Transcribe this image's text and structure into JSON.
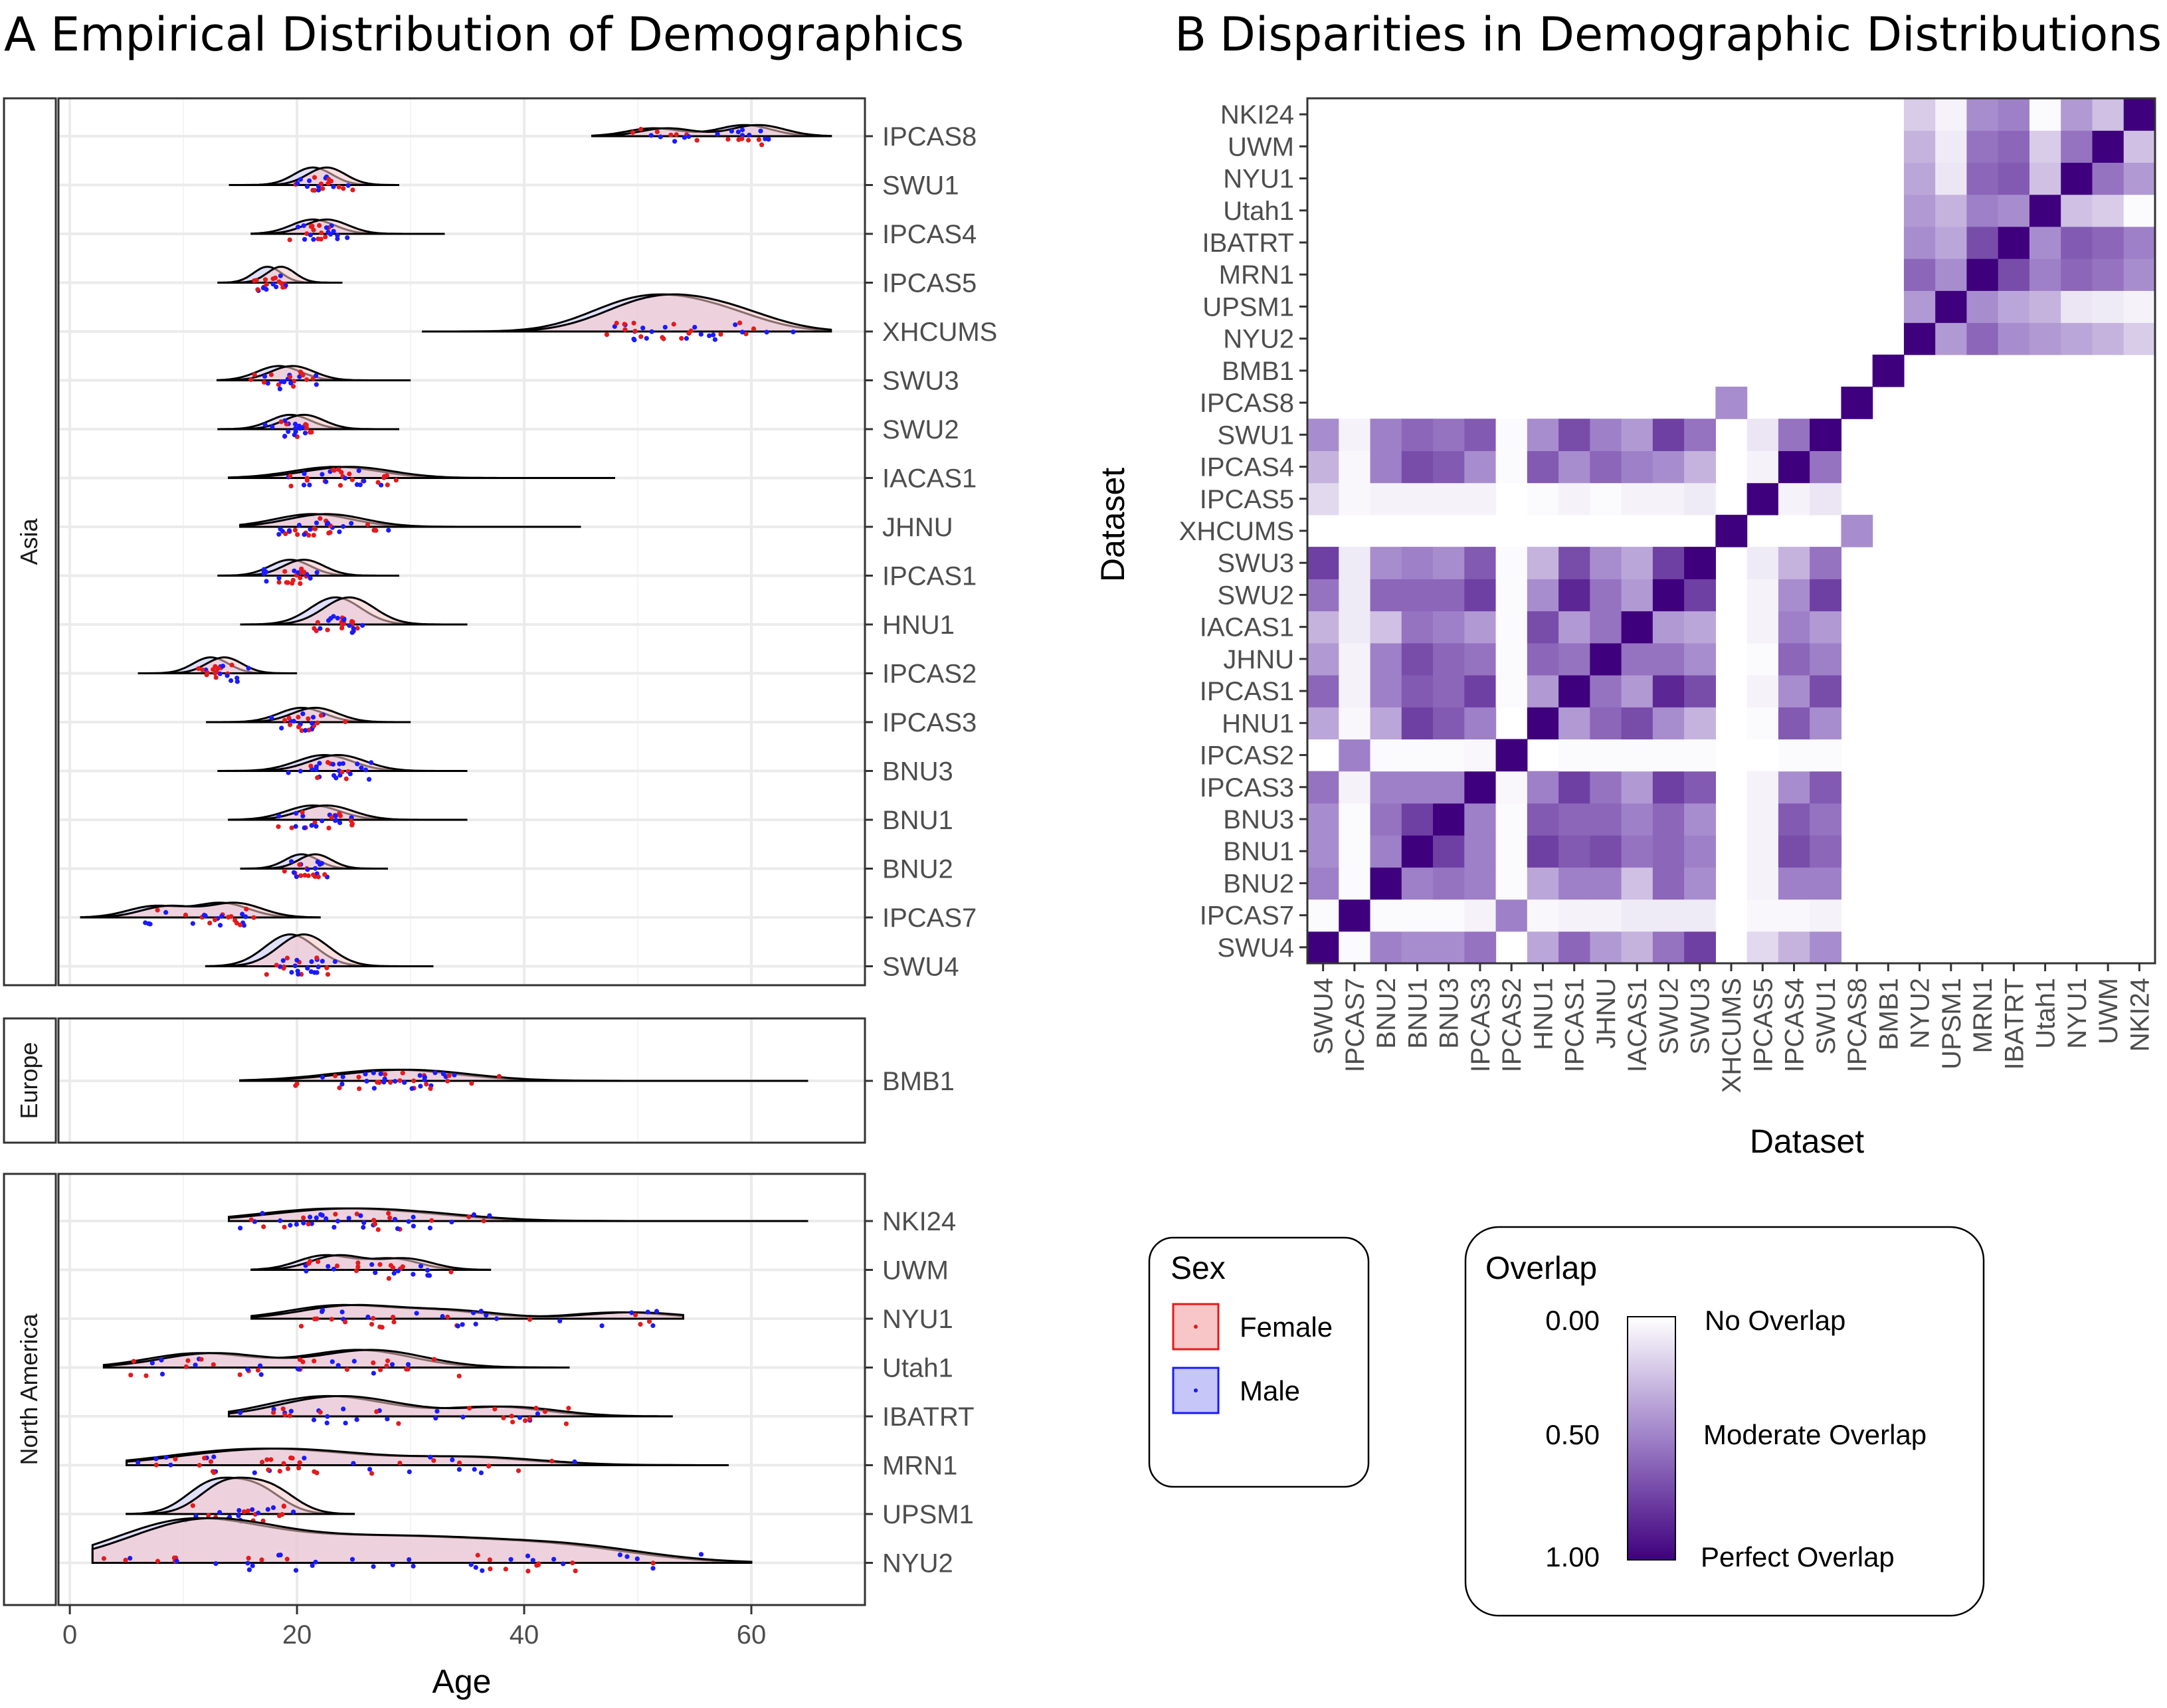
{
  "panel_a": {
    "letter": "A",
    "title": "Empirical Distribution of Demographics",
    "xlabel": "Age",
    "x_ticks": [
      "0",
      "20",
      "40",
      "60"
    ],
    "facets": [
      {
        "name": "Asia",
        "datasets": [
          "IPCAS8",
          "SWU1",
          "IPCAS4",
          "IPCAS5",
          "XHCUMS",
          "SWU3",
          "SWU2",
          "IACAS1",
          "JHNU",
          "IPCAS1",
          "HNU1",
          "IPCAS2",
          "IPCAS3",
          "BNU3",
          "BNU1",
          "BNU2",
          "IPCAS7",
          "SWU4"
        ]
      },
      {
        "name": "Europe",
        "datasets": [
          "BMB1"
        ]
      },
      {
        "name": "North America",
        "datasets": [
          "NKI24",
          "UWM",
          "NYU1",
          "Utah1",
          "IBATRT",
          "MRN1",
          "UPSM1",
          "NYU2"
        ]
      }
    ]
  },
  "panel_b": {
    "letter": "B",
    "title": "Disparities in Demographic Distributions",
    "xlabel": "Dataset",
    "ylabel": "Dataset",
    "order": [
      "SWU4",
      "IPCAS7",
      "BNU2",
      "BNU1",
      "BNU3",
      "IPCAS3",
      "IPCAS2",
      "HNU1",
      "IPCAS1",
      "JHNU",
      "IACAS1",
      "SWU2",
      "SWU3",
      "XHCUMS",
      "IPCAS5",
      "IPCAS4",
      "SWU1",
      "IPCAS8",
      "BMB1",
      "NYU2",
      "UPSM1",
      "MRN1",
      "IBATRT",
      "Utah1",
      "NYU1",
      "UWM",
      "NKI24"
    ]
  },
  "legend_sex": {
    "title": "Sex",
    "items": [
      {
        "label": "Female",
        "color": "#e41a1c",
        "fill": "#f8c6c6"
      },
      {
        "label": "Male",
        "color": "#1a1aff",
        "fill": "#c6c6f8"
      }
    ]
  },
  "legend_overlap": {
    "title": "Overlap",
    "ticks": [
      "0.00",
      "0.50",
      "1.00"
    ],
    "labels": [
      "No Overlap",
      "Moderate Overlap",
      "Perfect Overlap"
    ],
    "colors": [
      "#ffffff",
      "#9e80c8",
      "#3f007d"
    ]
  },
  "chart_data": [
    {
      "type": "ridgeline",
      "title": "Empirical Distribution of Demographics",
      "xlabel": "Age",
      "xlim": [
        -1,
        70
      ],
      "x_ticks": [
        0,
        20,
        40,
        60
      ],
      "grid": true,
      "series_names": [
        "Female",
        "Male"
      ],
      "ranges": {
        "IPCAS8": [
          46,
          67
        ],
        "SWU1": [
          14,
          29
        ],
        "IPCAS4": [
          16,
          33
        ],
        "IPCAS5": [
          13,
          24
        ],
        "XHCUMS": [
          31,
          67
        ],
        "SWU3": [
          13,
          30
        ],
        "SWU2": [
          13,
          29
        ],
        "IACAS1": [
          14,
          48
        ],
        "JHNU": [
          15,
          45
        ],
        "IPCAS1": [
          13,
          29
        ],
        "HNU1": [
          15,
          35
        ],
        "IPCAS2": [
          6,
          20
        ],
        "IPCAS3": [
          12,
          30
        ],
        "BNU3": [
          13,
          35
        ],
        "BNU1": [
          14,
          35
        ],
        "BNU2": [
          15,
          28
        ],
        "IPCAS7": [
          1,
          22
        ],
        "SWU4": [
          12,
          32
        ],
        "BMB1": [
          15,
          65
        ],
        "NKI24": [
          14,
          65
        ],
        "UWM": [
          16,
          37
        ],
        "NYU1": [
          16,
          54
        ],
        "Utah1": [
          3,
          44
        ],
        "IBATRT": [
          14,
          53
        ],
        "MRN1": [
          5,
          58
        ],
        "UPSM1": [
          5,
          25
        ],
        "NYU2": [
          2,
          60
        ]
      },
      "modes": {
        "IPCAS8": [
          [
            52,
            0.25
          ],
          [
            60,
            0.35
          ]
        ],
        "SWU1": [
          [
            22,
            0.55
          ]
        ],
        "IPCAS4": [
          [
            22,
            0.45
          ]
        ],
        "IPCAS5": [
          [
            18,
            0.5
          ]
        ],
        "XHCUMS": [
          [
            49,
            0.55
          ],
          [
            53,
            0.6
          ],
          [
            58,
            0.5
          ]
        ],
        "SWU3": [
          [
            19,
            0.45
          ]
        ],
        "SWU2": [
          [
            20,
            0.45
          ]
        ],
        "IACAS1": [
          [
            24,
            0.35
          ]
        ],
        "JHNU": [
          [
            22,
            0.4
          ]
        ],
        "IPCAS1": [
          [
            20,
            0.5
          ]
        ],
        "HNU1": [
          [
            24,
            0.85
          ]
        ],
        "IPCAS2": [
          [
            13,
            0.5
          ]
        ],
        "IPCAS3": [
          [
            21,
            0.45
          ]
        ],
        "BNU3": [
          [
            23,
            0.5
          ]
        ],
        "BNU1": [
          [
            22,
            0.45
          ]
        ],
        "BNU2": [
          [
            21,
            0.45
          ]
        ],
        "IPCAS7": [
          [
            8,
            0.35
          ],
          [
            14,
            0.45
          ]
        ],
        "SWU4": [
          [
            20,
            1.0
          ]
        ],
        "BMB1": [
          [
            29,
            0.35
          ]
        ],
        "NKI24": [
          [
            22,
            0.3
          ],
          [
            30,
            0.2
          ]
        ],
        "UWM": [
          [
            23,
            0.45
          ],
          [
            29,
            0.35
          ]
        ],
        "NYU1": [
          [
            24,
            0.4
          ],
          [
            33,
            0.25
          ],
          [
            49,
            0.2
          ]
        ],
        "Utah1": [
          [
            12,
            0.45
          ],
          [
            26,
            0.55
          ]
        ],
        "IBATRT": [
          [
            21,
            0.4
          ],
          [
            26,
            0.35
          ],
          [
            38,
            0.3
          ]
        ],
        "MRN1": [
          [
            13,
            0.3
          ],
          [
            21,
            0.35
          ],
          [
            35,
            0.25
          ]
        ],
        "UPSM1": [
          [
            13,
            0.9
          ],
          [
            17,
            0.8
          ]
        ],
        "NYU2": [
          [
            11,
            1.3
          ],
          [
            23,
            0.5
          ],
          [
            32,
            0.5
          ],
          [
            41,
            0.3
          ],
          [
            46,
            0.25
          ]
        ]
      }
    },
    {
      "type": "heatmap",
      "title": "Disparities in Demographic Distributions",
      "xlabel": "Dataset",
      "ylabel": "Dataset",
      "value_range": [
        0,
        1
      ],
      "categories": [
        "SWU4",
        "IPCAS7",
        "BNU2",
        "BNU1",
        "BNU3",
        "IPCAS3",
        "IPCAS2",
        "HNU1",
        "IPCAS1",
        "JHNU",
        "IACAS1",
        "SWU2",
        "SWU3",
        "XHCUMS",
        "IPCAS5",
        "IPCAS4",
        "SWU1",
        "IPCAS8",
        "BMB1",
        "NYU2",
        "UPSM1",
        "MRN1",
        "IBATRT",
        "Utah1",
        "NYU1",
        "UWM",
        "NKI24"
      ],
      "values": [
        [
          1.0,
          0.02,
          0.5,
          0.45,
          0.45,
          0.55,
          0.0,
          0.35,
          0.6,
          0.4,
          0.3,
          0.55,
          0.75,
          0.0,
          0.15,
          0.3,
          0.45,
          0.0,
          0,
          0,
          0,
          0,
          0,
          0,
          0,
          0,
          0
        ],
        [
          0.02,
          1.0,
          0.02,
          0.02,
          0.02,
          0.05,
          0.5,
          0.03,
          0.05,
          0.05,
          0.08,
          0.08,
          0.08,
          0.0,
          0.03,
          0.03,
          0.05,
          0.0,
          0,
          0,
          0,
          0,
          0,
          0,
          0,
          0,
          0
        ],
        [
          0.5,
          0.02,
          1.0,
          0.5,
          0.55,
          0.5,
          0.02,
          0.35,
          0.5,
          0.5,
          0.25,
          0.6,
          0.45,
          0.0,
          0.05,
          0.5,
          0.5,
          0.0,
          0,
          0,
          0,
          0,
          0,
          0,
          0,
          0,
          0
        ],
        [
          0.45,
          0.02,
          0.5,
          1.0,
          0.75,
          0.5,
          0.02,
          0.75,
          0.65,
          0.7,
          0.55,
          0.6,
          0.5,
          0.0,
          0.05,
          0.7,
          0.6,
          0.0,
          0,
          0,
          0,
          0,
          0,
          0,
          0,
          0,
          0
        ],
        [
          0.45,
          0.02,
          0.55,
          0.75,
          1.0,
          0.5,
          0.02,
          0.65,
          0.6,
          0.6,
          0.5,
          0.6,
          0.45,
          0.0,
          0.05,
          0.65,
          0.55,
          0.0,
          0,
          0,
          0,
          0,
          0,
          0,
          0,
          0,
          0
        ],
        [
          0.55,
          0.05,
          0.5,
          0.5,
          0.5,
          1.0,
          0.03,
          0.5,
          0.75,
          0.55,
          0.4,
          0.75,
          0.65,
          0.0,
          0.05,
          0.45,
          0.65,
          0.0,
          0,
          0,
          0,
          0,
          0,
          0,
          0,
          0,
          0
        ],
        [
          0.0,
          0.5,
          0.02,
          0.02,
          0.02,
          0.03,
          1.0,
          0.0,
          0.02,
          0.02,
          0.02,
          0.02,
          0.02,
          0.0,
          0.0,
          0.02,
          0.02,
          0.0,
          0,
          0,
          0,
          0,
          0,
          0,
          0,
          0,
          0
        ],
        [
          0.35,
          0.03,
          0.35,
          0.75,
          0.65,
          0.5,
          0.0,
          1.0,
          0.4,
          0.6,
          0.7,
          0.45,
          0.3,
          0.0,
          0.02,
          0.65,
          0.45,
          0.0,
          0,
          0,
          0,
          0,
          0,
          0,
          0,
          0,
          0
        ],
        [
          0.6,
          0.05,
          0.5,
          0.65,
          0.6,
          0.75,
          0.02,
          0.4,
          1.0,
          0.55,
          0.4,
          0.85,
          0.7,
          0.0,
          0.05,
          0.45,
          0.7,
          0.0,
          0,
          0,
          0,
          0,
          0,
          0,
          0,
          0,
          0
        ],
        [
          0.4,
          0.05,
          0.5,
          0.7,
          0.6,
          0.55,
          0.02,
          0.6,
          0.55,
          1.0,
          0.55,
          0.55,
          0.45,
          0.0,
          0.02,
          0.6,
          0.5,
          0.0,
          0,
          0,
          0,
          0,
          0,
          0,
          0,
          0,
          0
        ],
        [
          0.3,
          0.08,
          0.25,
          0.55,
          0.5,
          0.4,
          0.02,
          0.7,
          0.4,
          0.55,
          1.0,
          0.4,
          0.35,
          0.0,
          0.05,
          0.5,
          0.4,
          0.0,
          0,
          0,
          0,
          0,
          0,
          0,
          0,
          0,
          0
        ],
        [
          0.55,
          0.08,
          0.6,
          0.6,
          0.6,
          0.75,
          0.02,
          0.45,
          0.85,
          0.55,
          0.4,
          1.0,
          0.75,
          0.0,
          0.05,
          0.45,
          0.75,
          0.0,
          0,
          0,
          0,
          0,
          0,
          0,
          0,
          0,
          0
        ],
        [
          0.75,
          0.08,
          0.45,
          0.5,
          0.45,
          0.65,
          0.02,
          0.3,
          0.7,
          0.45,
          0.35,
          0.75,
          1.0,
          0.0,
          0.08,
          0.3,
          0.55,
          0.0,
          0,
          0,
          0,
          0,
          0,
          0,
          0,
          0,
          0
        ],
        [
          0.0,
          0.0,
          0.0,
          0.0,
          0.0,
          0.0,
          0.0,
          0.0,
          0.0,
          0.0,
          0.0,
          0.0,
          0.0,
          1.0,
          0.0,
          0.0,
          0.0,
          0.45,
          0,
          0,
          0,
          0,
          0,
          0,
          0,
          0,
          0
        ],
        [
          0.15,
          0.03,
          0.05,
          0.05,
          0.05,
          0.05,
          0.0,
          0.02,
          0.05,
          0.02,
          0.05,
          0.05,
          0.08,
          0.0,
          1.0,
          0.05,
          0.1,
          0.0,
          0,
          0,
          0,
          0,
          0,
          0,
          0,
          0,
          0
        ],
        [
          0.3,
          0.03,
          0.5,
          0.7,
          0.65,
          0.45,
          0.02,
          0.65,
          0.45,
          0.6,
          0.5,
          0.45,
          0.3,
          0.0,
          0.05,
          1.0,
          0.55,
          0.0,
          0,
          0,
          0,
          0,
          0,
          0,
          0,
          0,
          0
        ],
        [
          0.45,
          0.05,
          0.5,
          0.6,
          0.55,
          0.65,
          0.02,
          0.45,
          0.7,
          0.5,
          0.4,
          0.75,
          0.55,
          0.0,
          0.1,
          0.55,
          1.0,
          0.0,
          0,
          0,
          0,
          0,
          0,
          0,
          0,
          0,
          0
        ],
        [
          0.0,
          0.0,
          0.0,
          0.0,
          0.0,
          0.0,
          0.0,
          0.0,
          0.0,
          0.0,
          0.0,
          0.0,
          0.0,
          0.45,
          0.0,
          0.0,
          0.0,
          1.0,
          0,
          0,
          0,
          0,
          0,
          0,
          0,
          0,
          0
        ],
        [
          0,
          0,
          0,
          0,
          0,
          0,
          0,
          0,
          0,
          0,
          0,
          0,
          0,
          0,
          0,
          0,
          0,
          0,
          1.0,
          0,
          0,
          0,
          0,
          0,
          0,
          0,
          0
        ],
        [
          0,
          0,
          0,
          0,
          0,
          0,
          0,
          0,
          0,
          0,
          0,
          0,
          0,
          0,
          0,
          0,
          0,
          0,
          0,
          1.0,
          0.4,
          0.6,
          0.45,
          0.4,
          0.35,
          0.3,
          0.2
        ],
        [
          0,
          0,
          0,
          0,
          0,
          0,
          0,
          0,
          0,
          0,
          0,
          0,
          0,
          0,
          0,
          0,
          0,
          0,
          0,
          0.4,
          1.0,
          0.45,
          0.35,
          0.3,
          0.1,
          0.08,
          0.05
        ],
        [
          0,
          0,
          0,
          0,
          0,
          0,
          0,
          0,
          0,
          0,
          0,
          0,
          0,
          0,
          0,
          0,
          0,
          0,
          0,
          0.6,
          0.45,
          1.0,
          0.7,
          0.5,
          0.6,
          0.55,
          0.45
        ],
        [
          0,
          0,
          0,
          0,
          0,
          0,
          0,
          0,
          0,
          0,
          0,
          0,
          0,
          0,
          0,
          0,
          0,
          0,
          0,
          0.45,
          0.35,
          0.7,
          1.0,
          0.45,
          0.65,
          0.6,
          0.5
        ],
        [
          0,
          0,
          0,
          0,
          0,
          0,
          0,
          0,
          0,
          0,
          0,
          0,
          0,
          0,
          0,
          0,
          0,
          0,
          0,
          0.4,
          0.3,
          0.5,
          0.45,
          1.0,
          0.25,
          0.2,
          0.02
        ],
        [
          0,
          0,
          0,
          0,
          0,
          0,
          0,
          0,
          0,
          0,
          0,
          0,
          0,
          0,
          0,
          0,
          0,
          0,
          0,
          0.35,
          0.1,
          0.6,
          0.65,
          0.25,
          1.0,
          0.55,
          0.4
        ],
        [
          0,
          0,
          0,
          0,
          0,
          0,
          0,
          0,
          0,
          0,
          0,
          0,
          0,
          0,
          0,
          0,
          0,
          0,
          0,
          0.3,
          0.08,
          0.55,
          0.6,
          0.2,
          0.55,
          1.0,
          0.25
        ],
        [
          0,
          0,
          0,
          0,
          0,
          0,
          0,
          0,
          0,
          0,
          0,
          0,
          0,
          0,
          0,
          0,
          0,
          0,
          0,
          0.2,
          0.05,
          0.45,
          0.5,
          0.02,
          0.4,
          0.25,
          1.0
        ]
      ]
    }
  ]
}
